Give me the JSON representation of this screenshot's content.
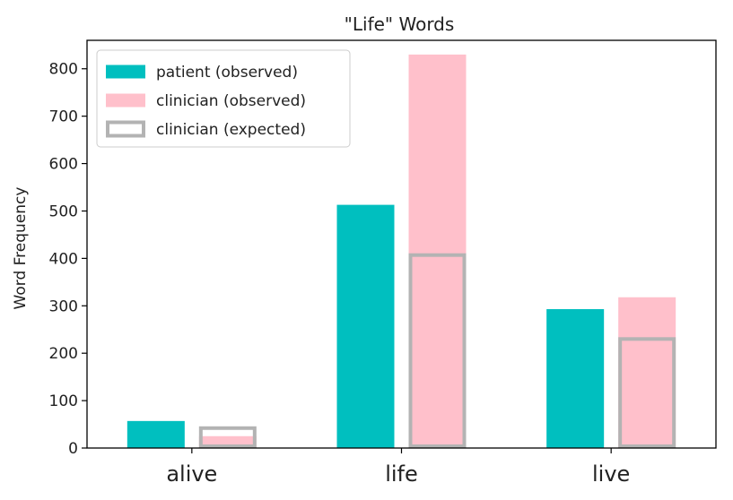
{
  "chart_data": {
    "type": "bar",
    "title": "\"Life\" Words",
    "xlabel": "",
    "ylabel": "Word Frequency",
    "categories": [
      "alive",
      "life",
      "live"
    ],
    "ylim": [
      0,
      860
    ],
    "yticks": [
      0,
      100,
      200,
      300,
      400,
      500,
      600,
      700,
      800
    ],
    "grid": false,
    "legend_position": "top-left",
    "series": [
      {
        "name": "patient (observed)",
        "values": [
          57,
          513,
          293
        ],
        "color": "#00bfbf",
        "style": "filled"
      },
      {
        "name": "clinician (observed)",
        "values": [
          25,
          830,
          318
        ],
        "color": "#ffc0cb",
        "style": "filled"
      },
      {
        "name": "clinician (expected)",
        "values": [
          42,
          407,
          230
        ],
        "color": "#b3b3b3",
        "style": "outline"
      }
    ]
  }
}
